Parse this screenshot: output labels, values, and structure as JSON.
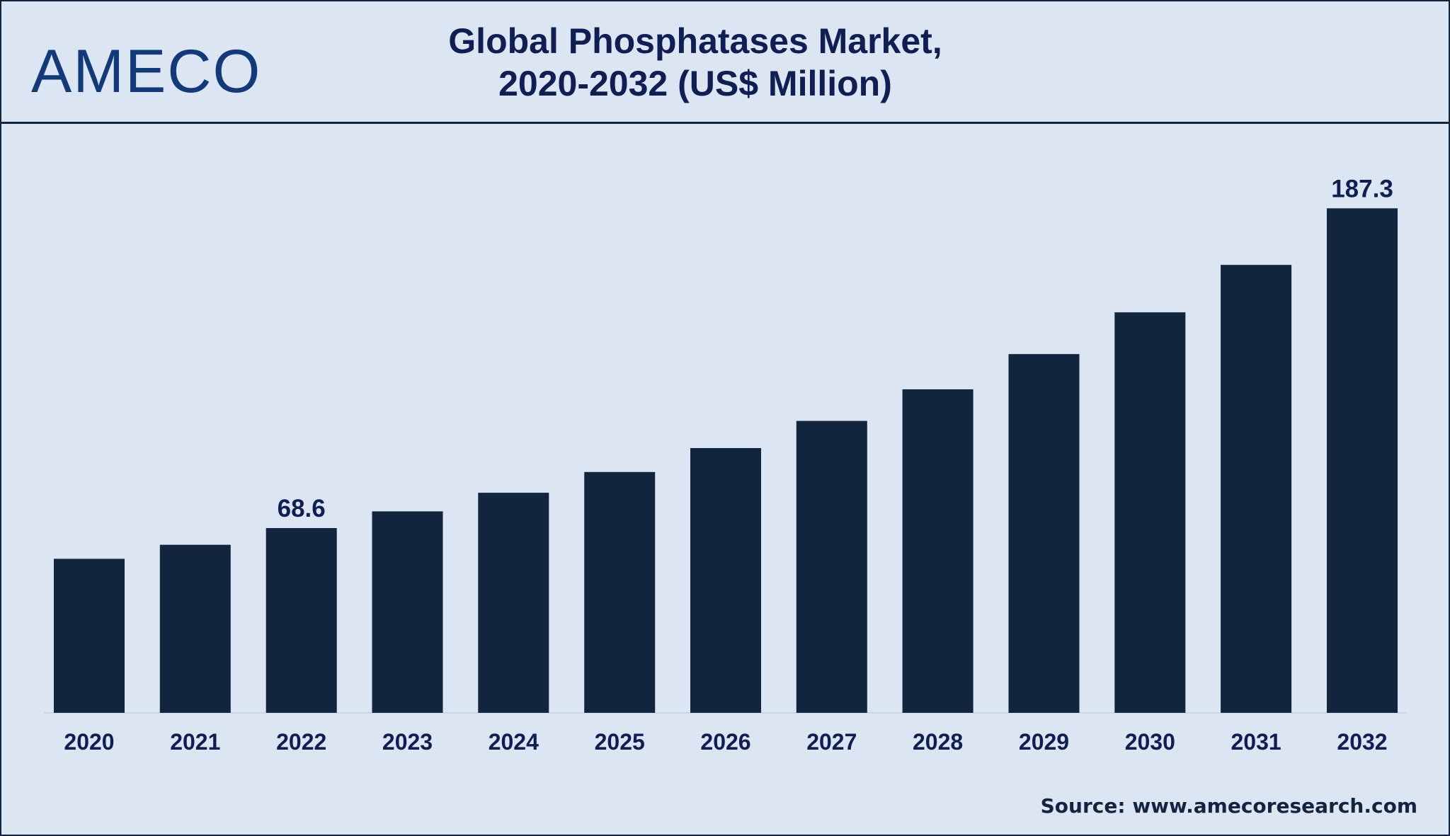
{
  "brand": {
    "logo_text": "AMECO",
    "color": "#123a7a"
  },
  "header": {
    "title_line1": "Global Phosphatases Market,",
    "title_line2": "2020-2032 (US$ Million)"
  },
  "footer": {
    "source": "Source: www.amecoresearch.com"
  },
  "colors": {
    "background": "#dce6f3",
    "bar": "#12253f",
    "text": "#0f1f54"
  },
  "chart_data": {
    "type": "bar",
    "title": "Global Phosphatases Market, 2020-2032 (US$ Million)",
    "categories": [
      "2020",
      "2021",
      "2022",
      "2023",
      "2024",
      "2025",
      "2026",
      "2027",
      "2028",
      "2029",
      "2030",
      "2031",
      "2032"
    ],
    "values": [
      57.2,
      62.4,
      68.6,
      74.8,
      81.7,
      89.4,
      98.3,
      108.4,
      120.1,
      133.2,
      148.7,
      166.3,
      187.3
    ],
    "data_labels": [
      {
        "category": "2022",
        "value": "68.6"
      },
      {
        "category": "2032",
        "value": "187.3"
      }
    ],
    "xlabel": "",
    "ylabel": "",
    "ylim": [
      0,
      205
    ],
    "grid": false,
    "legend": "none"
  }
}
